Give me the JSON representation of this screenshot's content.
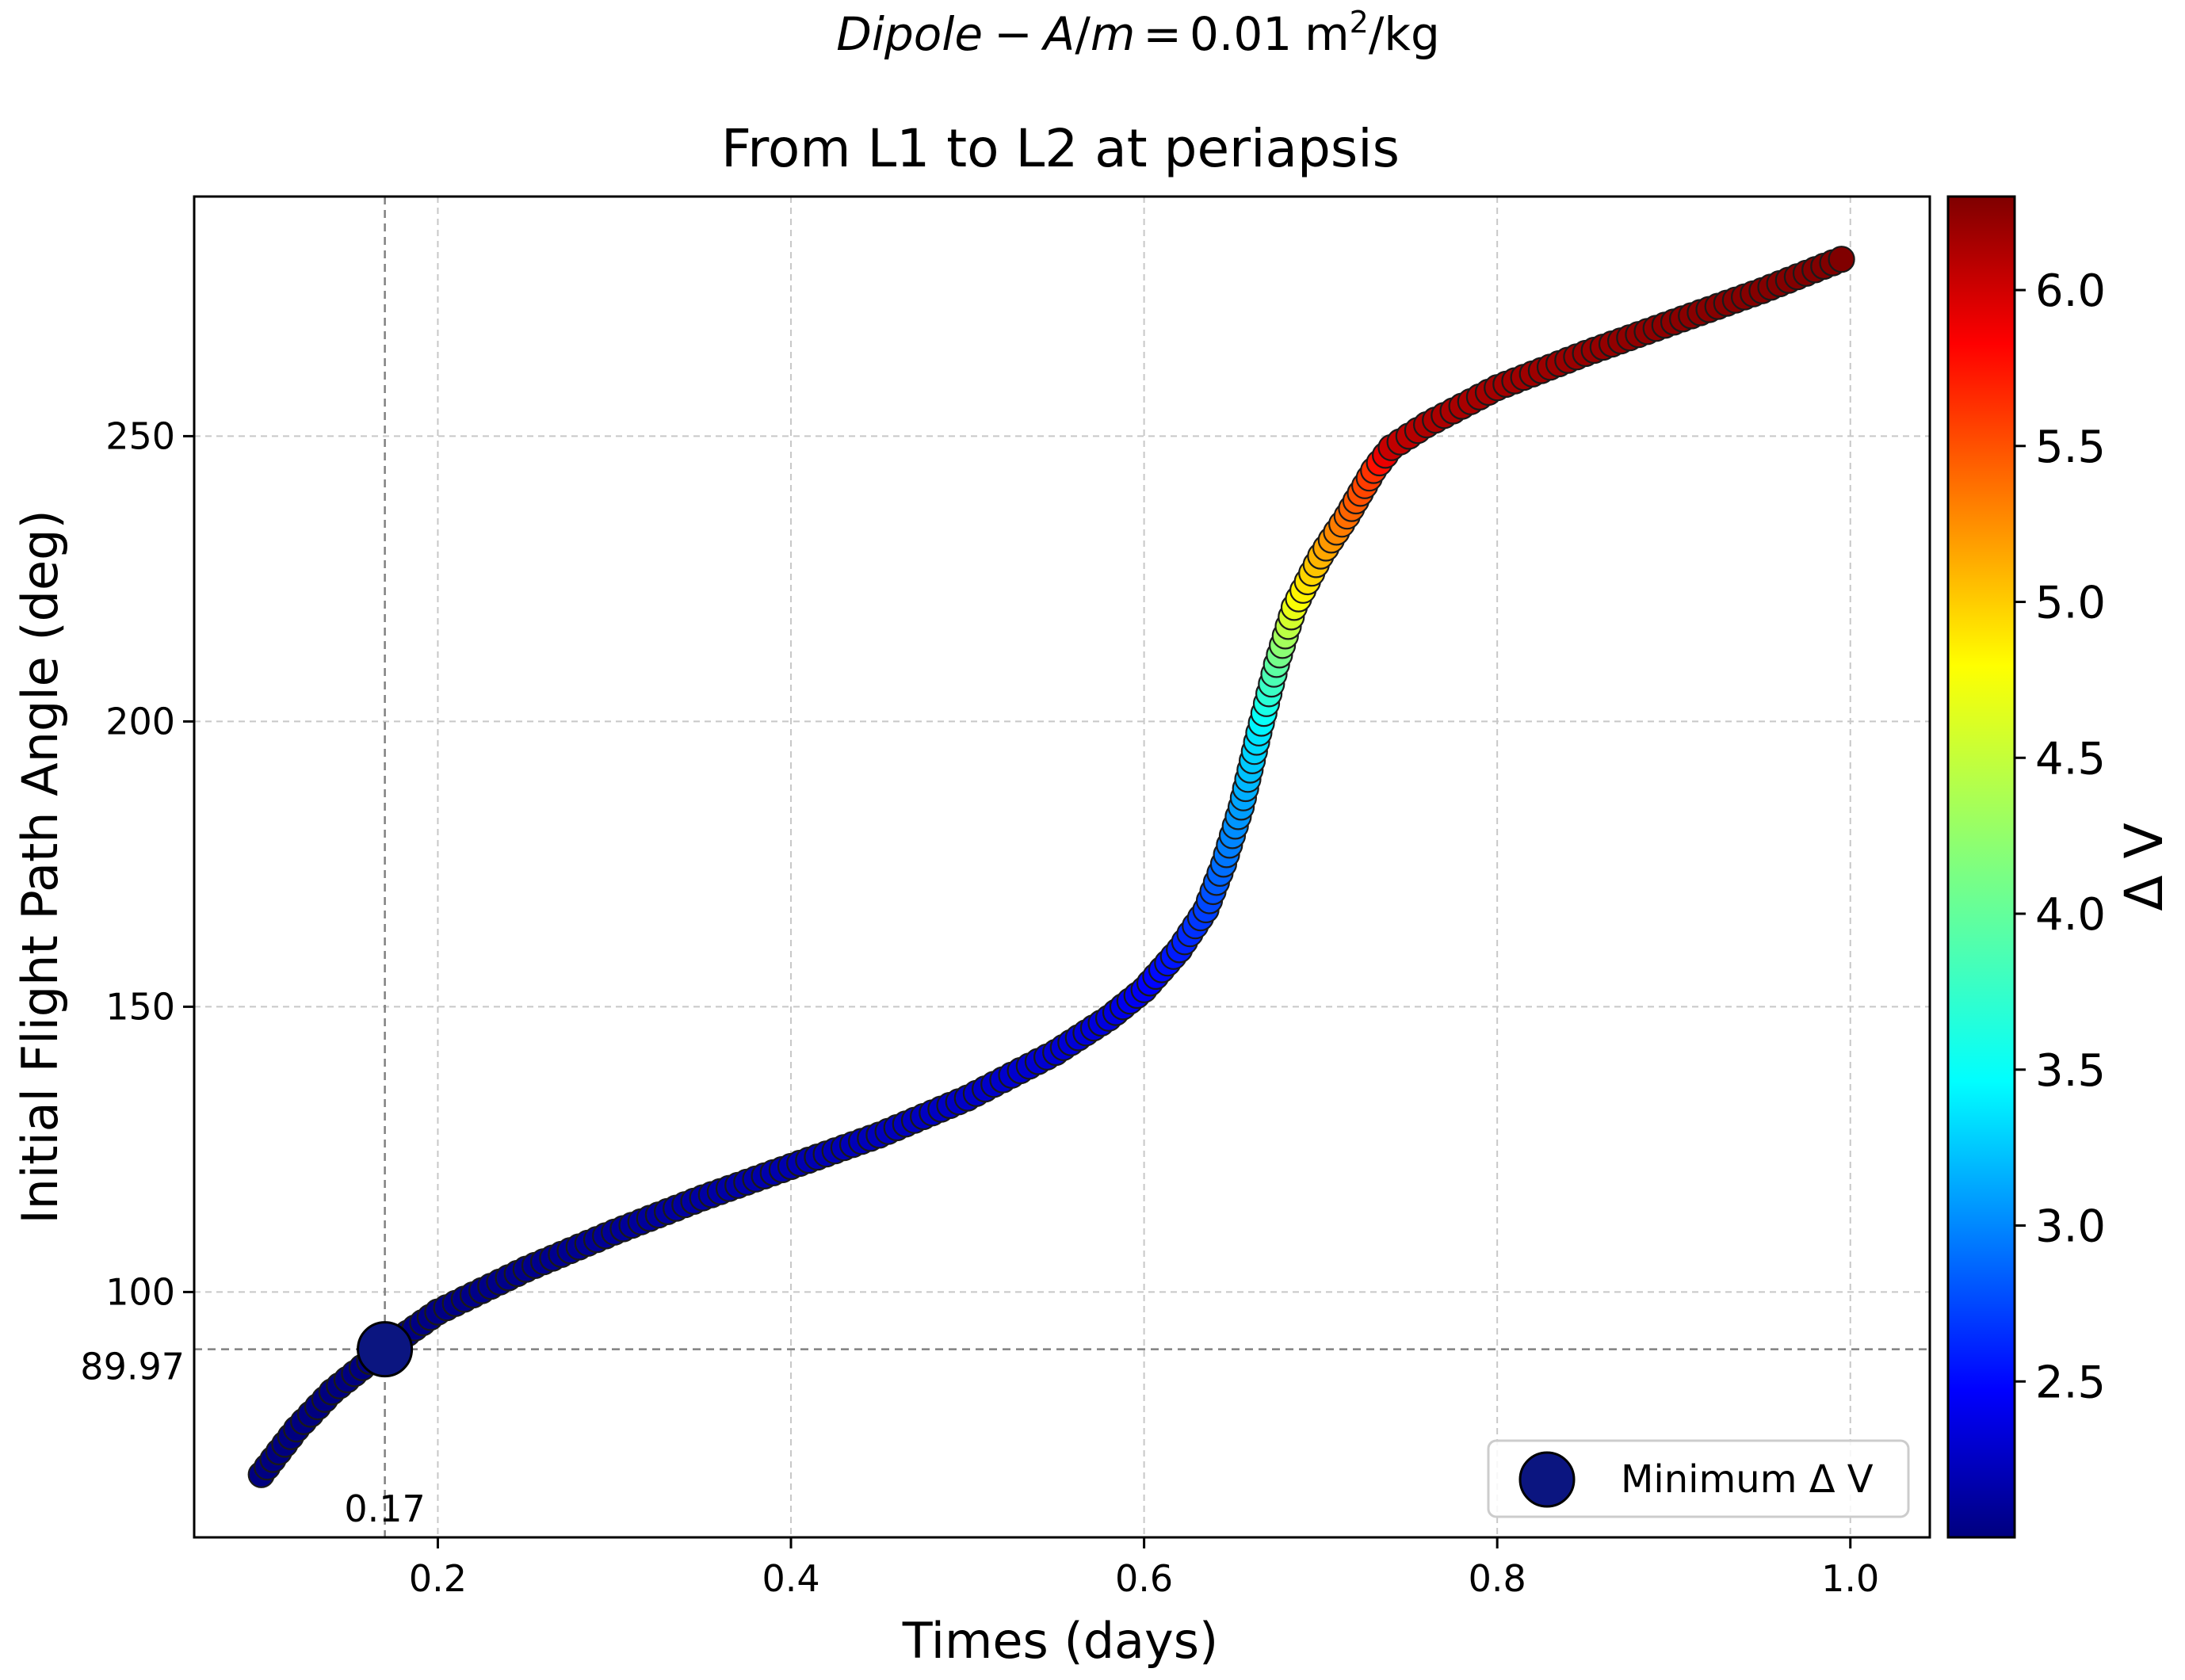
{
  "chart_data": {
    "type": "scatter",
    "suptitle": {
      "italic_part": "Dipole",
      "minus": "−",
      "am": "A",
      "slash": "/",
      "m": "m",
      "equals": "=",
      "value": "0.01",
      "unit_base": "m",
      "unit_sup": "2",
      "unit_rest": "/kg"
    },
    "title": "From L1 to L2 at periapsis",
    "xlabel": "Times (days)",
    "ylabel": "Initial Flight Path Angle (deg)",
    "xlim": [
      0.062,
      1.045
    ],
    "ylim": [
      57,
      292
    ],
    "xticks": [
      0.2,
      0.4,
      0.6,
      0.8,
      1.0
    ],
    "xtick_labels": [
      "0.2",
      "0.4",
      "0.6",
      "0.8",
      "1.0"
    ],
    "yticks": [
      100,
      150,
      200,
      250
    ],
    "ytick_labels": [
      "100",
      "150",
      "200",
      "250"
    ],
    "grid": true,
    "colorbar": {
      "label": "Δ V",
      "range": [
        2.0,
        6.3
      ],
      "ticks": [
        2.5,
        3.0,
        3.5,
        4.0,
        4.5,
        5.0,
        5.5,
        6.0
      ],
      "tick_labels": [
        "2.5",
        "3.0",
        "3.5",
        "4.0",
        "4.5",
        "5.0",
        "5.5",
        "6.0"
      ],
      "colormap": "jet"
    },
    "series_curve": [
      [
        0.1,
        68,
        2.0
      ],
      [
        0.12,
        76,
        2.0
      ],
      [
        0.14,
        82.5,
        2.0
      ],
      [
        0.17,
        89.97,
        2.0
      ],
      [
        0.2,
        96.5,
        2.02
      ],
      [
        0.25,
        104,
        2.05
      ],
      [
        0.3,
        110.5,
        2.1
      ],
      [
        0.35,
        116.5,
        2.15
      ],
      [
        0.4,
        122,
        2.2
      ],
      [
        0.45,
        127.5,
        2.25
      ],
      [
        0.5,
        134,
        2.3
      ],
      [
        0.55,
        142,
        2.35
      ],
      [
        0.58,
        148,
        2.4
      ],
      [
        0.6,
        153,
        2.5
      ],
      [
        0.62,
        160,
        2.65
      ],
      [
        0.635,
        167,
        2.8
      ],
      [
        0.645,
        175,
        3.0
      ],
      [
        0.655,
        185,
        3.2
      ],
      [
        0.665,
        198,
        3.5
      ],
      [
        0.675,
        210,
        4.0
      ],
      [
        0.685,
        220,
        4.6
      ],
      [
        0.7,
        229,
        5.0
      ],
      [
        0.715,
        236,
        5.3
      ],
      [
        0.73,
        244,
        5.55
      ],
      [
        0.74,
        248,
        6.0
      ],
      [
        0.76,
        252,
        6.1
      ],
      [
        0.8,
        258.5,
        6.15
      ],
      [
        0.85,
        264.5,
        6.2
      ],
      [
        0.9,
        270,
        6.25
      ],
      [
        0.95,
        275.5,
        6.28
      ],
      [
        0.995,
        281,
        6.3
      ]
    ],
    "minimum": {
      "x": 0.17,
      "y": 89.97,
      "x_label": "0.17",
      "y_label": "89.97",
      "color": "#0b1580"
    },
    "legend": {
      "label": "Minimum Δ V",
      "location": "lower-right"
    }
  }
}
